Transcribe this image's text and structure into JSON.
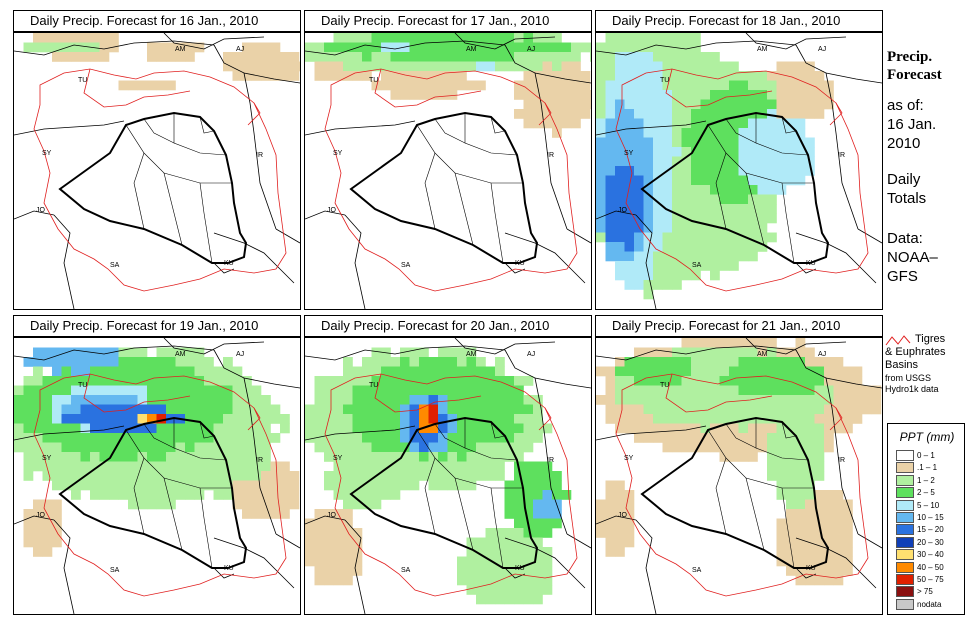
{
  "panels": [
    {
      "title": "Daily Precip. Forecast for  16 Jan., 2010",
      "pattern": "p16"
    },
    {
      "title": "Daily Precip. Forecast for  17 Jan., 2010",
      "pattern": "p17"
    },
    {
      "title": "Daily Precip. Forecast for  18 Jan., 2010",
      "pattern": "p18"
    },
    {
      "title": "Daily Precip. Forecast for  19 Jan., 2010",
      "pattern": "p19"
    },
    {
      "title": "Daily Precip. Forecast for  20 Jan., 2010",
      "pattern": "p20"
    },
    {
      "title": "Daily Precip. Forecast for  21 Jan., 2010",
      "pattern": "p21"
    }
  ],
  "map_labels": [
    "AM",
    "AJ",
    "TU",
    "SY",
    "IR",
    "JO",
    "SA",
    "KU"
  ],
  "sidebar": {
    "title_line1": "Precip.",
    "title_line2": "Forecast",
    "as_of": "as of:",
    "date_line1": "16 Jan.",
    "date_line2": "2010",
    "totals_line1": "Daily",
    "totals_line2": "Totals",
    "data_line1": "Data:",
    "data_line2": "NOAA–",
    "data_line3": "GFS"
  },
  "basin_note": {
    "line1": "Tigres",
    "line2": "& Euphrates",
    "line3": "Basins",
    "line4": "from USGS",
    "line5": "Hydro1k data"
  },
  "legend": {
    "title": "PPT (mm)",
    "items": [
      {
        "label": "0 – 1",
        "color": "#ffffff"
      },
      {
        "label": ".1 – 1",
        "color": "#ead2a8"
      },
      {
        "label": "1 – 2",
        "color": "#b0f0a0"
      },
      {
        "label": "2 – 5",
        "color": "#5ee05e"
      },
      {
        "label": "5 – 10",
        "color": "#b0eaf8"
      },
      {
        "label": "10 – 15",
        "color": "#64b8f0"
      },
      {
        "label": "15 – 20",
        "color": "#2a72e0"
      },
      {
        "label": "20 – 30",
        "color": "#1040b8"
      },
      {
        "label": "30 – 40",
        "color": "#ffe070"
      },
      {
        "label": "40 – 50",
        "color": "#ff8a00"
      },
      {
        "label": "50 – 75",
        "color": "#e02000"
      },
      {
        "label": "> 75",
        "color": "#8a1010"
      },
      {
        "label": "nodata",
        "color": "#c8c8c8"
      }
    ]
  }
}
